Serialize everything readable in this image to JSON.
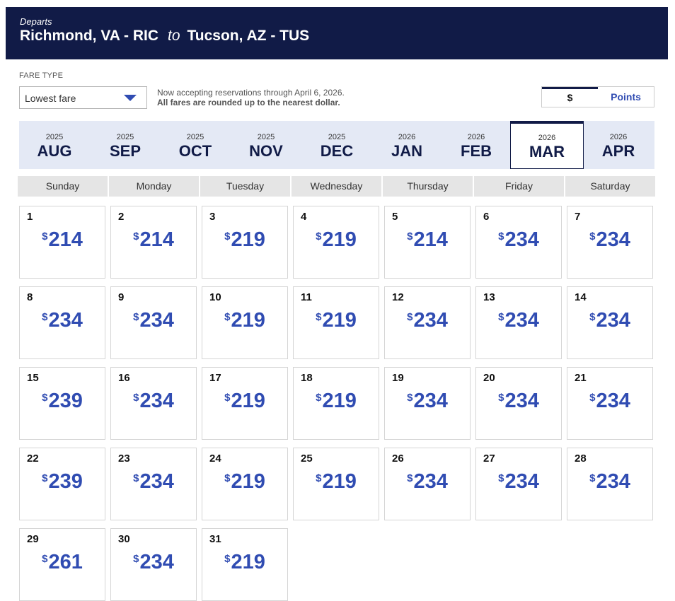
{
  "header": {
    "departs_label": "Departs",
    "origin": "Richmond, VA - RIC",
    "connector": "to",
    "destination": "Tucson, AZ - TUS"
  },
  "fare_type": {
    "label": "FARE TYPE",
    "selected": "Lowest fare"
  },
  "notice": {
    "line1": "Now accepting reservations through April 6, 2026.",
    "line2": "All fares are rounded up to the nearest dollar."
  },
  "currency_toggle": {
    "dollar": "$",
    "points": "Points",
    "selected": "$"
  },
  "months": [
    {
      "year": "2025",
      "month": "AUG"
    },
    {
      "year": "2025",
      "month": "SEP"
    },
    {
      "year": "2025",
      "month": "OCT"
    },
    {
      "year": "2025",
      "month": "NOV"
    },
    {
      "year": "2025",
      "month": "DEC"
    },
    {
      "year": "2026",
      "month": "JAN"
    },
    {
      "year": "2026",
      "month": "FEB"
    },
    {
      "year": "2026",
      "month": "MAR",
      "selected": true
    },
    {
      "year": "2026",
      "month": "APR"
    }
  ],
  "weekdays": [
    "Sunday",
    "Monday",
    "Tuesday",
    "Wednesday",
    "Thursday",
    "Friday",
    "Saturday"
  ],
  "calendar": {
    "currency_symbol": "$",
    "start_weekday_index": 0,
    "days": [
      {
        "day": "1",
        "price": "214"
      },
      {
        "day": "2",
        "price": "214"
      },
      {
        "day": "3",
        "price": "219"
      },
      {
        "day": "4",
        "price": "219"
      },
      {
        "day": "5",
        "price": "214"
      },
      {
        "day": "6",
        "price": "234"
      },
      {
        "day": "7",
        "price": "234"
      },
      {
        "day": "8",
        "price": "234"
      },
      {
        "day": "9",
        "price": "234"
      },
      {
        "day": "10",
        "price": "219"
      },
      {
        "day": "11",
        "price": "219"
      },
      {
        "day": "12",
        "price": "234"
      },
      {
        "day": "13",
        "price": "234"
      },
      {
        "day": "14",
        "price": "234"
      },
      {
        "day": "15",
        "price": "239"
      },
      {
        "day": "16",
        "price": "234"
      },
      {
        "day": "17",
        "price": "219"
      },
      {
        "day": "18",
        "price": "219"
      },
      {
        "day": "19",
        "price": "234"
      },
      {
        "day": "20",
        "price": "234"
      },
      {
        "day": "21",
        "price": "234"
      },
      {
        "day": "22",
        "price": "239"
      },
      {
        "day": "23",
        "price": "234"
      },
      {
        "day": "24",
        "price": "219"
      },
      {
        "day": "25",
        "price": "219"
      },
      {
        "day": "26",
        "price": "234"
      },
      {
        "day": "27",
        "price": "234"
      },
      {
        "day": "28",
        "price": "234"
      },
      {
        "day": "29",
        "price": "261"
      },
      {
        "day": "30",
        "price": "234"
      },
      {
        "day": "31",
        "price": "219"
      }
    ]
  },
  "colors": {
    "header_bg": "#111b47",
    "price_blue": "#304cb2",
    "month_strip_bg": "#e4e9f5"
  }
}
